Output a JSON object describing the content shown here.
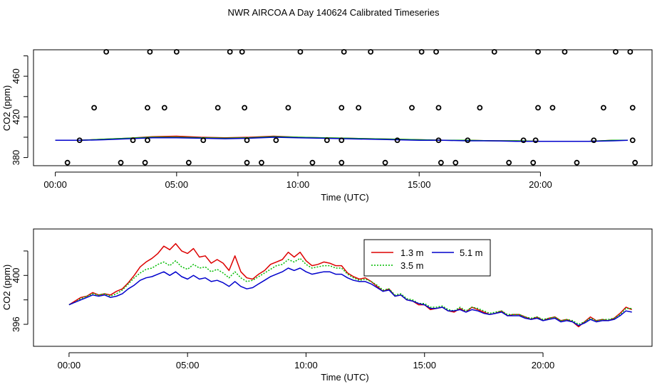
{
  "title": "NWR AIRCOA A  Day 140624  Calibrated Timeseries",
  "chart_data": [
    {
      "type": "scatter",
      "xlabel": "Time (UTC)",
      "ylabel": "CO2 (ppm)",
      "xlim": [
        -0.9,
        24.6
      ],
      "ylim": [
        372,
        486
      ],
      "xticks": [
        0,
        5,
        10,
        15,
        20
      ],
      "xtick_labels": [
        "00:00",
        "05:00",
        "10:00",
        "15:00",
        "20:00"
      ],
      "yticks": [
        380,
        420,
        460
      ],
      "ytick_labels": [
        "380",
        "420",
        "460"
      ],
      "series": [
        {
          "name": "calibration points",
          "marker": "open-circle",
          "color": "#000000",
          "points": [
            [
              0.5,
              375
            ],
            [
              2.7,
              375
            ],
            [
              3.7,
              375
            ],
            [
              5.5,
              375
            ],
            [
              7.9,
              375
            ],
            [
              8.5,
              375
            ],
            [
              10.6,
              375
            ],
            [
              11.8,
              375
            ],
            [
              13.6,
              375
            ],
            [
              15.9,
              375
            ],
            [
              16.5,
              375
            ],
            [
              18.7,
              375
            ],
            [
              19.7,
              375
            ],
            [
              21.5,
              375
            ],
            [
              23.9,
              375
            ],
            [
              1.0,
              397
            ],
            [
              3.2,
              397
            ],
            [
              3.8,
              397
            ],
            [
              6.1,
              397
            ],
            [
              7.9,
              397
            ],
            [
              9.1,
              397
            ],
            [
              11.2,
              397
            ],
            [
              11.8,
              397
            ],
            [
              14.1,
              397
            ],
            [
              15.8,
              397
            ],
            [
              17.0,
              397
            ],
            [
              19.3,
              397
            ],
            [
              19.8,
              397
            ],
            [
              22.2,
              397
            ],
            [
              23.8,
              397
            ],
            [
              1.6,
              429
            ],
            [
              3.8,
              429
            ],
            [
              4.5,
              429
            ],
            [
              6.7,
              429
            ],
            [
              7.8,
              429
            ],
            [
              9.6,
              429
            ],
            [
              11.8,
              429
            ],
            [
              12.5,
              429
            ],
            [
              14.7,
              429
            ],
            [
              15.8,
              429
            ],
            [
              17.5,
              429
            ],
            [
              19.9,
              429
            ],
            [
              20.5,
              429
            ],
            [
              22.6,
              429
            ],
            [
              23.8,
              429
            ],
            [
              2.1,
              484
            ],
            [
              3.9,
              484
            ],
            [
              5.0,
              484
            ],
            [
              7.2,
              484
            ],
            [
              7.7,
              484
            ],
            [
              10.1,
              484
            ],
            [
              11.9,
              484
            ],
            [
              13.0,
              484
            ],
            [
              15.1,
              484
            ],
            [
              15.7,
              484
            ],
            [
              18.1,
              484
            ],
            [
              19.9,
              484
            ],
            [
              21.0,
              484
            ],
            [
              23.1,
              484
            ],
            [
              23.7,
              484
            ]
          ]
        },
        {
          "name": "1.3 m",
          "color": "#dd0000",
          "x": [
            0,
            1,
            2,
            3,
            4,
            5,
            6,
            7,
            8,
            9,
            10,
            11,
            12,
            13,
            14,
            15,
            16,
            17,
            18,
            19,
            20,
            21,
            22,
            23,
            23.6
          ],
          "y": [
            397,
            397,
            398,
            399,
            400.5,
            401,
            400,
            399.5,
            400,
            401,
            400,
            399.5,
            399,
            398.5,
            398,
            397.5,
            397,
            397,
            396.5,
            396.5,
            396,
            396,
            396,
            397,
            397
          ]
        },
        {
          "name": "3.5 m",
          "color": "#00bb00",
          "x": [
            0,
            1,
            2,
            3,
            4,
            5,
            6,
            7,
            8,
            9,
            10,
            11,
            12,
            13,
            14,
            15,
            16,
            17,
            18,
            19,
            20,
            21,
            22,
            23,
            23.6
          ],
          "y": [
            397,
            397,
            398,
            399,
            400,
            400,
            399.5,
            399,
            399.5,
            400.5,
            400,
            399.5,
            399,
            398.5,
            398,
            397.5,
            397,
            397,
            396.5,
            396.5,
            396,
            396,
            396,
            397,
            397
          ]
        },
        {
          "name": "5.1 m",
          "color": "#0000cc",
          "x": [
            0,
            1,
            2,
            3,
            4,
            5,
            6,
            7,
            8,
            9,
            10,
            11,
            12,
            13,
            14,
            15,
            16,
            17,
            18,
            19,
            20,
            21,
            22,
            23,
            23.6
          ],
          "y": [
            397,
            397,
            397.5,
            398.5,
            399.5,
            399.5,
            399,
            398.5,
            399,
            400,
            399.5,
            399,
            398.5,
            398,
            397.5,
            397,
            397,
            396.5,
            396.5,
            396,
            396,
            396,
            396,
            396.5,
            397
          ]
        }
      ]
    },
    {
      "type": "line",
      "xlabel": "Time (UTC)",
      "ylabel": "CO2 (ppm)",
      "xlim": [
        -1.5,
        24.6
      ],
      "ylim": [
        394.2,
        403.8
      ],
      "xticks": [
        0,
        5,
        10,
        15,
        20
      ],
      "xtick_labels": [
        "00:00",
        "05:00",
        "10:00",
        "15:00",
        "20:00"
      ],
      "yticks": [
        396,
        400
      ],
      "ytick_labels": [
        "396",
        "400"
      ],
      "legend": "top-right",
      "legend_entries": [
        "1.3 m",
        "3.5 m",
        "5.1 m"
      ],
      "series": [
        {
          "name": "1.3 m",
          "color": "#dd0000",
          "line": "solid",
          "x": [
            0,
            0.25,
            0.5,
            0.75,
            1,
            1.25,
            1.5,
            1.75,
            2,
            2.25,
            2.5,
            2.75,
            3,
            3.25,
            3.5,
            3.75,
            4,
            4.25,
            4.5,
            4.75,
            5,
            5.25,
            5.5,
            5.75,
            6,
            6.25,
            6.5,
            6.75,
            7,
            7.25,
            7.5,
            7.75,
            8,
            8.25,
            8.5,
            8.75,
            9,
            9.25,
            9.5,
            9.75,
            10,
            10.25,
            10.5,
            10.75,
            11,
            11.25,
            11.5,
            11.75,
            12,
            12.25,
            12.5,
            12.75,
            13,
            13.25,
            13.5,
            13.75,
            14,
            14.25,
            14.5,
            14.75,
            15,
            15.25,
            15.5,
            15.75,
            16,
            16.25,
            16.5,
            16.75,
            17,
            17.25,
            17.5,
            17.75,
            18,
            18.25,
            18.5,
            18.75,
            19,
            19.25,
            19.5,
            19.75,
            20,
            20.25,
            20.5,
            20.75,
            21,
            21.25,
            21.5,
            21.75,
            22,
            22.25,
            22.5,
            22.75,
            23,
            23.25,
            23.5,
            23.75
          ],
          "y": [
            397.6,
            397.9,
            398.2,
            398.3,
            398.6,
            398.4,
            398.5,
            398.4,
            398.7,
            398.9,
            399.4,
            400.0,
            400.7,
            401.1,
            401.4,
            401.8,
            402.4,
            402.1,
            402.6,
            402.0,
            401.8,
            402.2,
            401.5,
            401.6,
            401.0,
            401.3,
            401.0,
            400.4,
            401.6,
            400.3,
            399.8,
            399.7,
            400.1,
            400.4,
            400.9,
            401.1,
            401.3,
            401.9,
            401.5,
            401.9,
            401.2,
            400.8,
            400.9,
            401.1,
            401.0,
            400.8,
            400.8,
            400.2,
            399.9,
            399.7,
            399.8,
            399.5,
            399.1,
            398.7,
            398.9,
            398.3,
            398.4,
            398.0,
            397.9,
            397.6,
            397.6,
            397.2,
            397.3,
            397.4,
            397.1,
            397.0,
            397.3,
            397.0,
            397.4,
            397.2,
            397.0,
            396.8,
            396.9,
            397.1,
            396.7,
            396.8,
            396.8,
            396.6,
            396.4,
            396.6,
            396.3,
            396.5,
            396.6,
            396.3,
            396.4,
            396.2,
            395.8,
            396.2,
            396.6,
            396.3,
            396.4,
            396.3,
            396.5,
            396.9,
            397.4,
            397.2
          ]
        },
        {
          "name": "3.5 m",
          "color": "#00bb00",
          "line": "dotted",
          "x": [
            0,
            0.25,
            0.5,
            0.75,
            1,
            1.25,
            1.5,
            1.75,
            2,
            2.25,
            2.5,
            2.75,
            3,
            3.25,
            3.5,
            3.75,
            4,
            4.25,
            4.5,
            4.75,
            5,
            5.25,
            5.5,
            5.75,
            6,
            6.25,
            6.5,
            6.75,
            7,
            7.25,
            7.5,
            7.75,
            8,
            8.25,
            8.5,
            8.75,
            9,
            9.25,
            9.5,
            9.75,
            10,
            10.25,
            10.5,
            10.75,
            11,
            11.25,
            11.5,
            11.75,
            12,
            12.25,
            12.5,
            12.75,
            13,
            13.25,
            13.5,
            13.75,
            14,
            14.25,
            14.5,
            14.75,
            15,
            15.25,
            15.5,
            15.75,
            16,
            16.25,
            16.5,
            16.75,
            17,
            17.25,
            17.5,
            17.75,
            18,
            18.25,
            18.5,
            18.75,
            19,
            19.25,
            19.5,
            19.75,
            20,
            20.25,
            20.5,
            20.75,
            21,
            21.25,
            21.5,
            21.75,
            22,
            22.25,
            22.5,
            22.75,
            23,
            23.25,
            23.5,
            23.75
          ],
          "y": [
            397.6,
            397.8,
            398.1,
            398.3,
            398.5,
            398.4,
            398.5,
            398.3,
            398.5,
            398.8,
            399.3,
            399.8,
            400.2,
            400.5,
            400.6,
            400.9,
            401.1,
            400.8,
            401.2,
            400.7,
            400.5,
            400.9,
            400.6,
            400.7,
            400.3,
            400.5,
            400.2,
            399.8,
            400.3,
            399.8,
            399.5,
            399.6,
            399.9,
            400.2,
            400.5,
            400.8,
            400.9,
            401.3,
            401.1,
            401.4,
            400.9,
            400.6,
            400.7,
            400.8,
            400.8,
            400.6,
            400.6,
            400.1,
            399.8,
            399.6,
            399.7,
            399.5,
            399.2,
            398.8,
            398.9,
            398.4,
            398.5,
            398.1,
            398.0,
            397.7,
            397.7,
            397.4,
            397.4,
            397.5,
            397.2,
            397.1,
            397.4,
            397.1,
            397.4,
            397.3,
            397.1,
            396.9,
            397.0,
            397.1,
            396.8,
            396.8,
            396.8,
            396.6,
            396.5,
            396.6,
            396.4,
            396.5,
            396.6,
            396.3,
            396.4,
            396.3,
            396.0,
            396.2,
            396.5,
            396.3,
            396.4,
            396.4,
            396.5,
            396.8,
            397.3,
            397.3
          ]
        },
        {
          "name": "5.1 m",
          "color": "#0000cc",
          "line": "solid",
          "x": [
            0,
            0.25,
            0.5,
            0.75,
            1,
            1.25,
            1.5,
            1.75,
            2,
            2.25,
            2.5,
            2.75,
            3,
            3.25,
            3.5,
            3.75,
            4,
            4.25,
            4.5,
            4.75,
            5,
            5.25,
            5.5,
            5.75,
            6,
            6.25,
            6.5,
            6.75,
            7,
            7.25,
            7.5,
            7.75,
            8,
            8.25,
            8.5,
            8.75,
            9,
            9.25,
            9.5,
            9.75,
            10,
            10.25,
            10.5,
            10.75,
            11,
            11.25,
            11.5,
            11.75,
            12,
            12.25,
            12.5,
            12.75,
            13,
            13.25,
            13.5,
            13.75,
            14,
            14.25,
            14.5,
            14.75,
            15,
            15.25,
            15.5,
            15.75,
            16,
            16.25,
            16.5,
            16.75,
            17,
            17.25,
            17.5,
            17.75,
            18,
            18.25,
            18.5,
            18.75,
            19,
            19.25,
            19.5,
            19.75,
            20,
            20.25,
            20.5,
            20.75,
            21,
            21.25,
            21.5,
            21.75,
            22,
            22.25,
            22.5,
            22.75,
            23,
            23.25,
            23.5,
            23.75
          ],
          "y": [
            397.6,
            397.8,
            398.0,
            398.2,
            398.4,
            398.3,
            398.4,
            398.2,
            398.3,
            398.5,
            398.9,
            399.2,
            399.6,
            399.8,
            399.9,
            400.1,
            400.3,
            400.0,
            400.3,
            399.9,
            399.7,
            400.0,
            399.7,
            399.8,
            399.5,
            399.6,
            399.4,
            399.1,
            399.5,
            399.1,
            398.9,
            399.0,
            399.3,
            399.6,
            399.9,
            400.1,
            400.3,
            400.6,
            400.4,
            400.6,
            400.3,
            400.1,
            400.2,
            400.3,
            400.3,
            400.1,
            400.1,
            399.8,
            399.6,
            399.5,
            399.5,
            399.3,
            399.0,
            398.7,
            398.8,
            398.3,
            398.4,
            398.0,
            397.9,
            397.7,
            397.6,
            397.3,
            397.3,
            397.4,
            397.1,
            397.1,
            397.2,
            397.0,
            397.2,
            397.1,
            396.9,
            396.8,
            396.9,
            397.0,
            396.7,
            396.7,
            396.7,
            396.5,
            396.4,
            396.5,
            396.3,
            396.4,
            396.5,
            396.2,
            396.3,
            396.2,
            395.9,
            396.1,
            396.4,
            396.2,
            396.3,
            396.3,
            396.4,
            396.7,
            397.1,
            397.0
          ]
        }
      ]
    }
  ]
}
